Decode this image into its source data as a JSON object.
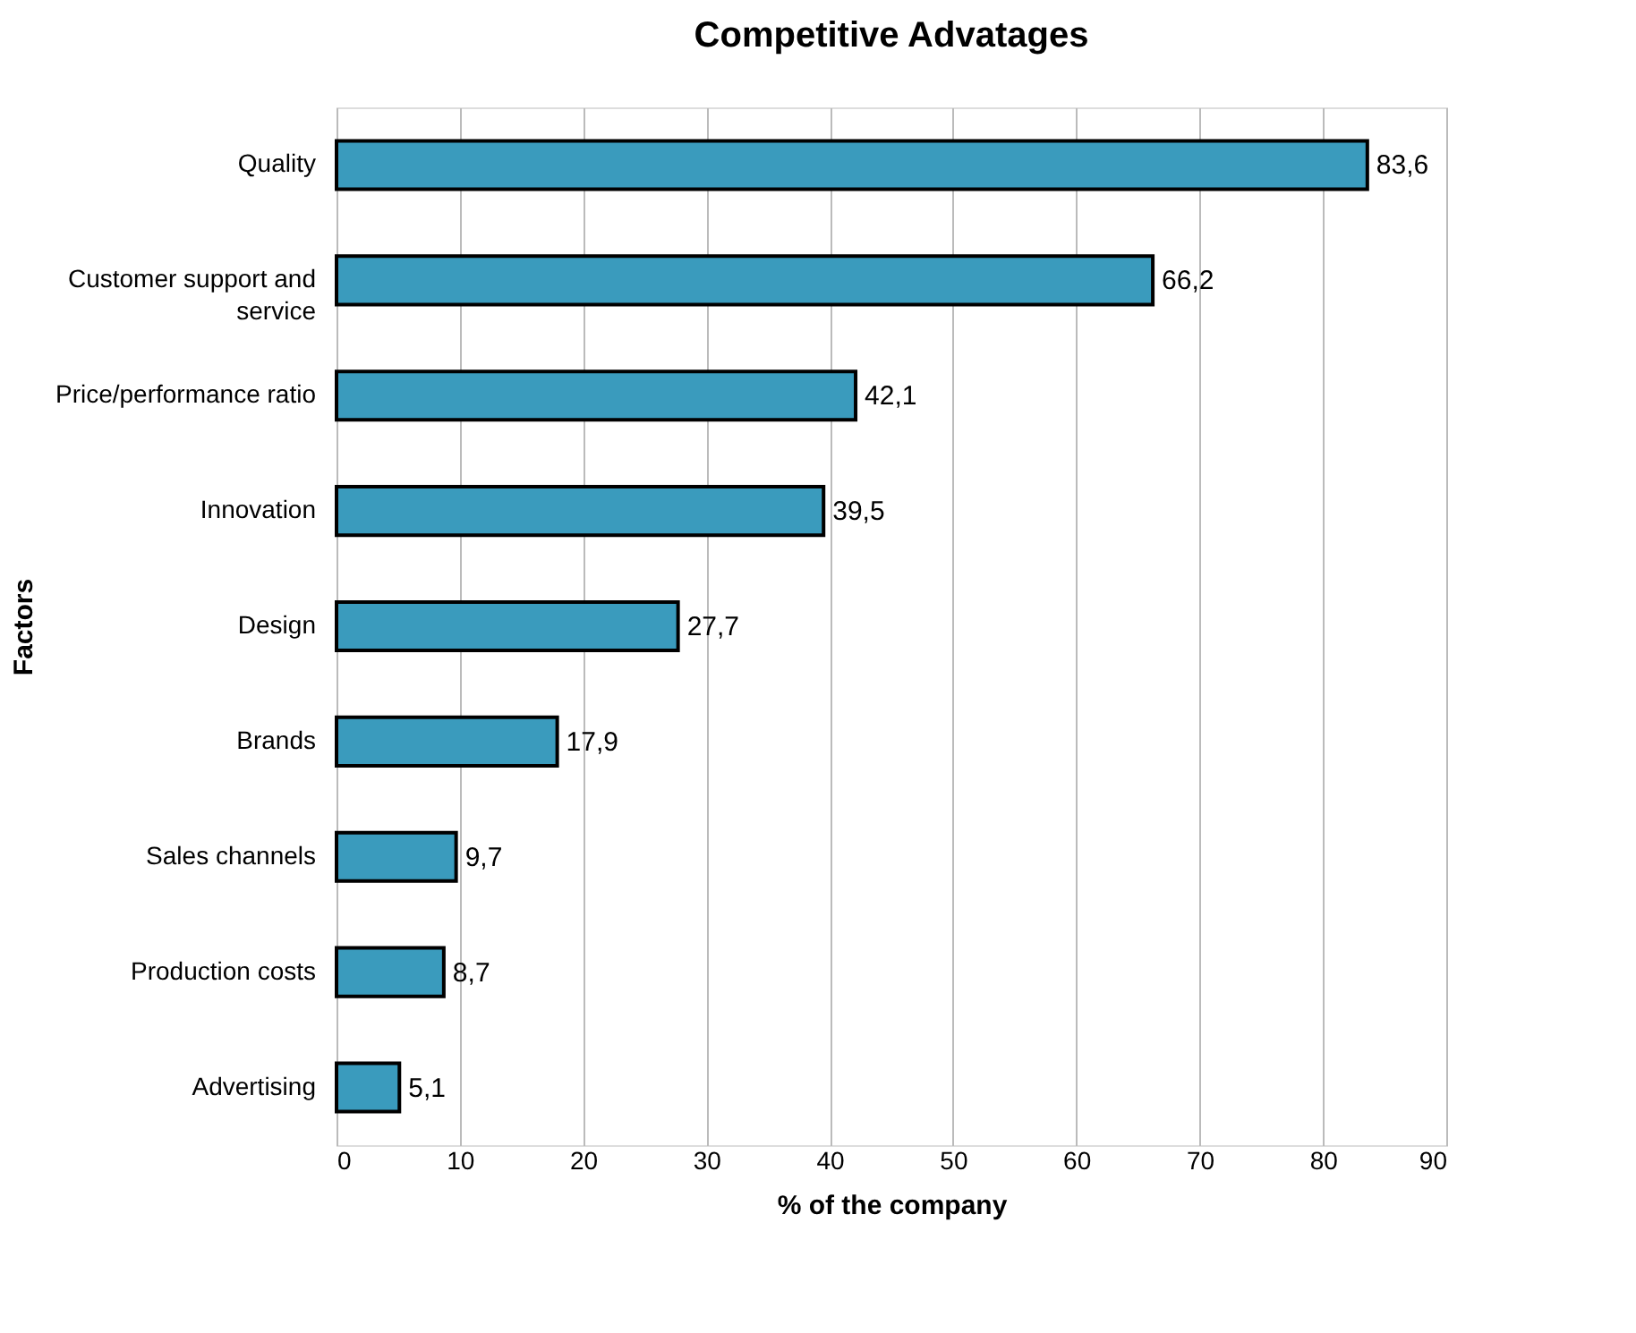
{
  "chart_data": {
    "type": "bar",
    "orientation": "horizontal",
    "title": "Competitive Advatages",
    "xlabel": "% of the company",
    "ylabel": "Factors",
    "categories": [
      "Quality",
      "Customer support and service",
      "Price/performance ratio",
      "Innovation",
      "Design",
      "Brands",
      "Sales channels",
      "Production costs",
      "Advertising"
    ],
    "values": [
      83.6,
      66.2,
      42.1,
      39.5,
      27.7,
      17.9,
      9.7,
      8.7,
      5.1
    ],
    "value_labels": [
      "83,6",
      "66,2",
      "42,1",
      "39,5",
      "27,7",
      "17,9",
      "9,7",
      "8,7",
      "5,1"
    ],
    "color": "#3a9bbd",
    "xlim": [
      0,
      90
    ],
    "xticks": [
      0,
      10,
      20,
      30,
      40,
      50,
      60,
      70,
      80,
      90
    ],
    "grid": "x"
  }
}
